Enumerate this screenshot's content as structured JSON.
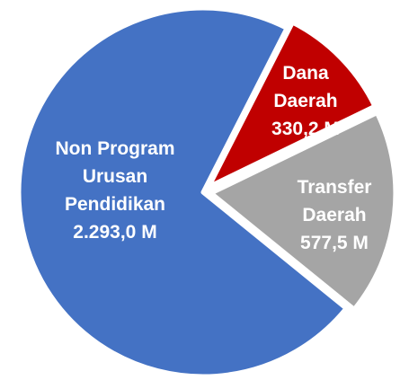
{
  "chart_data": {
    "type": "pie",
    "categories": [
      "Non Program Urusan Pendidikan",
      "Dana Daerah",
      "Transfer Daerah"
    ],
    "values": [
      2293.0,
      330.2,
      577.5
    ],
    "value_labels": [
      "2.293,0 M",
      "330,2 M",
      "577,5 M"
    ],
    "colors": [
      "#4472c4",
      "#c00000",
      "#a5a5a5"
    ]
  }
}
